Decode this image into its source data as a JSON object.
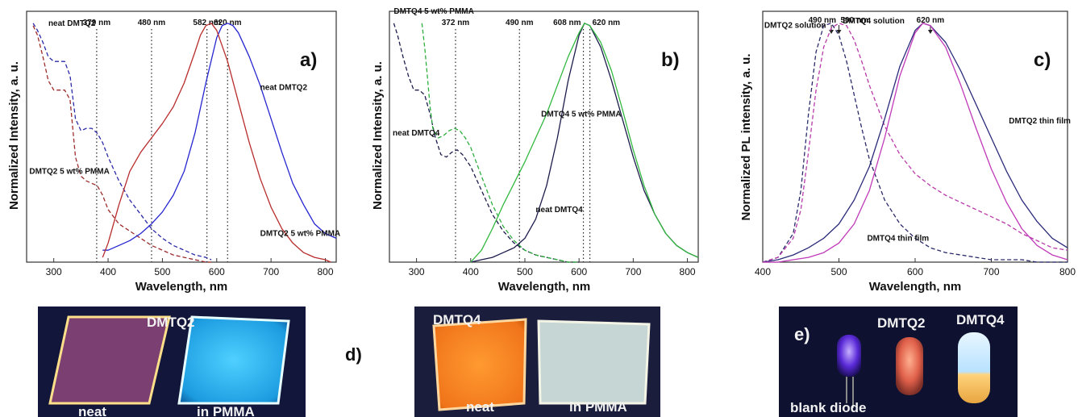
{
  "chart_data": [
    {
      "type": "line",
      "panel_label": "a)",
      "xlabel": "Wavelength, nm",
      "ylabel": "Normalized Intensity, a. u.",
      "xlim": [
        250,
        820
      ],
      "ylim": [
        0,
        1.05
      ],
      "xticks": [
        300,
        400,
        500,
        600,
        700,
        800
      ],
      "vlines": [
        {
          "x": 379,
          "label": "379 nm"
        },
        {
          "x": 480,
          "label": "480 nm"
        },
        {
          "x": 582,
          "label": "582 nm"
        },
        {
          "x": 620,
          "label": "620 nm"
        }
      ],
      "series": [
        {
          "name": "neat DMTQ2",
          "style": "dashed",
          "color": "#2a2aa8",
          "x": [
            262,
            270,
            280,
            290,
            300,
            310,
            320,
            330,
            340,
            350,
            360,
            370,
            380,
            390,
            400,
            420,
            440,
            460,
            480,
            500,
            520,
            540,
            560,
            580,
            590
          ],
          "y": [
            1.0,
            0.97,
            0.92,
            0.86,
            0.84,
            0.84,
            0.84,
            0.78,
            0.6,
            0.55,
            0.56,
            0.56,
            0.54,
            0.5,
            0.44,
            0.34,
            0.26,
            0.2,
            0.14,
            0.1,
            0.07,
            0.05,
            0.03,
            0.02,
            0.01
          ]
        },
        {
          "name": "DMTQ2 5 wt%  PMMA",
          "style": "dashed",
          "color": "#9c2b2b",
          "x": [
            262,
            270,
            280,
            290,
            300,
            310,
            320,
            330,
            340,
            350,
            360,
            370,
            380,
            390,
            400,
            420,
            440,
            460,
            480,
            500,
            520,
            540,
            560,
            580,
            590
          ],
          "y": [
            0.99,
            0.95,
            0.86,
            0.76,
            0.72,
            0.72,
            0.72,
            0.68,
            0.44,
            0.36,
            0.34,
            0.33,
            0.32,
            0.28,
            0.22,
            0.16,
            0.13,
            0.1,
            0.07,
            0.05,
            0.03,
            0.02,
            0.01,
            0.0,
            0.0
          ]
        },
        {
          "name": "neat DMTQ2",
          "style": "solid",
          "color": "#2626d0",
          "x": [
            390,
            400,
            420,
            440,
            460,
            480,
            500,
            520,
            540,
            560,
            580,
            600,
            610,
            620,
            630,
            640,
            660,
            680,
            700,
            720,
            740,
            760,
            780,
            800,
            820
          ],
          "y": [
            0.05,
            0.05,
            0.07,
            0.09,
            0.12,
            0.16,
            0.21,
            0.28,
            0.38,
            0.54,
            0.75,
            0.94,
            0.99,
            1.0,
            0.99,
            0.96,
            0.86,
            0.74,
            0.6,
            0.46,
            0.33,
            0.24,
            0.16,
            0.12,
            0.1
          ]
        },
        {
          "name": "DMTQ2 5 wt%  PMMA",
          "style": "solid",
          "color": "#b82c2c",
          "x": [
            390,
            400,
            420,
            440,
            460,
            480,
            500,
            520,
            540,
            560,
            570,
            580,
            590,
            600,
            620,
            640,
            660,
            680,
            700,
            720,
            740,
            760,
            780,
            800,
            810
          ],
          "y": [
            0.02,
            0.08,
            0.24,
            0.38,
            0.46,
            0.52,
            0.58,
            0.65,
            0.75,
            0.88,
            0.95,
            0.99,
            1.0,
            0.97,
            0.84,
            0.67,
            0.5,
            0.35,
            0.23,
            0.14,
            0.08,
            0.04,
            0.02,
            0.01,
            0.0
          ]
        }
      ],
      "annotations": [
        {
          "text": "neat DMTQ2",
          "x": 290,
          "y": 0.99
        },
        {
          "text": "neat DMTQ2",
          "x": 680,
          "y": 0.72
        },
        {
          "text": "DMTQ2 5 wt%  PMMA",
          "x": 255,
          "y": 0.37
        },
        {
          "text": "DMTQ2 5 wt%  PMMA",
          "x": 680,
          "y": 0.11
        }
      ]
    },
    {
      "type": "line",
      "panel_label": "b)",
      "xlabel": "Wavelength, nm",
      "ylabel": "Normalized Intensity, a. u.",
      "xlim": [
        250,
        820
      ],
      "ylim": [
        0,
        1.05
      ],
      "xticks": [
        300,
        400,
        500,
        600,
        700,
        800
      ],
      "vlines": [
        {
          "x": 372,
          "label": "372 nm"
        },
        {
          "x": 490,
          "label": "490 nm"
        },
        {
          "x": 608,
          "label": "608 nm"
        },
        {
          "x": 620,
          "label": "620 nm"
        }
      ],
      "series": [
        {
          "name": "neat DMTQ4",
          "style": "dashed",
          "color": "#1c1c4c",
          "x": [
            258,
            265,
            275,
            285,
            295,
            305,
            315,
            325,
            335,
            345,
            355,
            365,
            375,
            385,
            400,
            420,
            440,
            460,
            480,
            500,
            520,
            540,
            560,
            580,
            600
          ],
          "y": [
            1.0,
            0.95,
            0.86,
            0.78,
            0.72,
            0.72,
            0.7,
            0.62,
            0.52,
            0.45,
            0.44,
            0.46,
            0.47,
            0.45,
            0.4,
            0.3,
            0.2,
            0.13,
            0.08,
            0.05,
            0.03,
            0.02,
            0.01,
            0.0,
            0.0
          ]
        },
        {
          "name": "DMTQ4 5 wt%  PMMA",
          "style": "dashed",
          "color": "#2eae3e",
          "x": [
            310,
            315,
            320,
            325,
            330,
            340,
            350,
            360,
            370,
            380,
            390,
            400,
            420,
            440,
            460,
            480,
            500,
            520,
            540,
            560,
            580,
            600
          ],
          "y": [
            1.0,
            0.9,
            0.78,
            0.65,
            0.56,
            0.52,
            0.53,
            0.55,
            0.56,
            0.55,
            0.52,
            0.48,
            0.36,
            0.24,
            0.15,
            0.09,
            0.05,
            0.03,
            0.02,
            0.01,
            0.0,
            0.0
          ]
        },
        {
          "name": "neat DMTQ4",
          "style": "solid",
          "color": "#1c1c4c",
          "x": [
            400,
            420,
            440,
            460,
            480,
            500,
            520,
            540,
            560,
            580,
            600,
            610,
            620,
            640,
            660,
            680,
            700,
            720,
            740,
            760,
            780,
            800,
            820
          ],
          "y": [
            0.0,
            0.01,
            0.02,
            0.04,
            0.06,
            0.1,
            0.18,
            0.32,
            0.52,
            0.76,
            0.95,
            1.0,
            0.99,
            0.9,
            0.76,
            0.6,
            0.44,
            0.3,
            0.2,
            0.12,
            0.07,
            0.04,
            0.02
          ]
        },
        {
          "name": "DMTQ4 5 wt%  PMMA",
          "style": "solid",
          "color": "#32b840",
          "x": [
            400,
            420,
            440,
            460,
            480,
            500,
            520,
            540,
            560,
            580,
            600,
            610,
            620,
            640,
            660,
            680,
            700,
            720,
            740,
            760,
            780,
            800,
            820
          ],
          "y": [
            0.0,
            0.05,
            0.14,
            0.24,
            0.33,
            0.42,
            0.52,
            0.62,
            0.74,
            0.86,
            0.96,
            1.0,
            0.99,
            0.92,
            0.8,
            0.64,
            0.47,
            0.32,
            0.2,
            0.12,
            0.07,
            0.04,
            0.02
          ]
        }
      ],
      "annotations": [
        {
          "text": "DMTQ4 5 wt%  PMMA",
          "x": 258,
          "y": 1.04
        },
        {
          "text": "neat DMTQ4",
          "x": 256,
          "y": 0.53
        },
        {
          "text": "DMTQ4 5 wt%  PMMA",
          "x": 530,
          "y": 0.61
        },
        {
          "text": "neat DMTQ4",
          "x": 520,
          "y": 0.21
        }
      ]
    },
    {
      "type": "line",
      "panel_label": "c)",
      "xlabel": "Wavelength, nm",
      "ylabel": "Normalized PL intensity, a. u.",
      "xlim": [
        400,
        800
      ],
      "ylim": [
        0,
        1.05
      ],
      "xticks": [
        400,
        500,
        600,
        700,
        800
      ],
      "vlines": [],
      "arrows": [
        {
          "x": 490,
          "label": "490 nm"
        },
        {
          "x": 500,
          "label": "500 nm"
        },
        {
          "x": 620,
          "label": "620 nm"
        }
      ],
      "series": [
        {
          "name": "DMTQ2 solution",
          "style": "dashed",
          "color": "#2a2a6a",
          "x": [
            400,
            420,
            440,
            450,
            460,
            470,
            480,
            490,
            500,
            510,
            520,
            530,
            540,
            560,
            580,
            600,
            620,
            640,
            660,
            680,
            700,
            720,
            740,
            760,
            780,
            800
          ],
          "y": [
            0.0,
            0.02,
            0.12,
            0.3,
            0.62,
            0.88,
            0.99,
            1.0,
            0.95,
            0.84,
            0.7,
            0.56,
            0.43,
            0.26,
            0.16,
            0.1,
            0.06,
            0.04,
            0.03,
            0.02,
            0.01,
            0.01,
            0.01,
            0.0,
            0.0,
            0.0
          ]
        },
        {
          "name": "DMTQ4 solution",
          "style": "dashed",
          "color": "#b83aa8",
          "x": [
            400,
            420,
            440,
            450,
            460,
            470,
            480,
            490,
            500,
            510,
            520,
            530,
            540,
            560,
            580,
            600,
            620,
            640,
            660,
            680,
            700,
            720,
            740,
            760,
            780,
            800
          ],
          "y": [
            0.0,
            0.02,
            0.1,
            0.22,
            0.46,
            0.72,
            0.9,
            0.98,
            1.0,
            0.99,
            0.93,
            0.84,
            0.74,
            0.57,
            0.45,
            0.37,
            0.32,
            0.28,
            0.25,
            0.22,
            0.19,
            0.16,
            0.12,
            0.09,
            0.06,
            0.05
          ]
        },
        {
          "name": "DMTQ2 thin film",
          "style": "solid",
          "color": "#2a2a7a",
          "x": [
            400,
            420,
            440,
            460,
            480,
            500,
            520,
            540,
            560,
            580,
            600,
            610,
            620,
            640,
            660,
            680,
            700,
            720,
            740,
            760,
            780,
            800
          ],
          "y": [
            0.0,
            0.01,
            0.03,
            0.06,
            0.1,
            0.16,
            0.26,
            0.4,
            0.6,
            0.82,
            0.97,
            1.0,
            0.99,
            0.92,
            0.8,
            0.66,
            0.52,
            0.38,
            0.26,
            0.17,
            0.1,
            0.06
          ]
        },
        {
          "name": "DMTQ4 thin film",
          "style": "solid",
          "color": "#c03ab8",
          "x": [
            400,
            420,
            440,
            460,
            480,
            500,
            520,
            540,
            560,
            580,
            600,
            610,
            620,
            640,
            660,
            680,
            700,
            720,
            740,
            760,
            780,
            800
          ],
          "y": [
            0.0,
            0.0,
            0.01,
            0.02,
            0.04,
            0.08,
            0.16,
            0.3,
            0.52,
            0.78,
            0.96,
            1.0,
            0.99,
            0.9,
            0.74,
            0.56,
            0.39,
            0.25,
            0.14,
            0.07,
            0.03,
            0.01
          ]
        }
      ],
      "annotations": [
        {
          "text": "DMTQ2 solution",
          "x": 402,
          "y": 0.98
        },
        {
          "text": "DMTQ4 solution",
          "x": 505,
          "y": 1.0
        },
        {
          "text": "DMTQ2 thin film",
          "x": 723,
          "y": 0.58
        },
        {
          "text": "DMTQ4 thin film",
          "x": 537,
          "y": 0.09
        }
      ]
    }
  ],
  "photos": {
    "d_label": "d)",
    "e_label": "e)",
    "photo1": {
      "title": "DMTQ2",
      "left": "neat",
      "right": "in PMMA"
    },
    "photo2": {
      "title": "DMTQ4",
      "left": "neat",
      "right": "in PMMA"
    },
    "photo3": {
      "label1": "DMTQ2",
      "label2": "DMTQ4",
      "bottom": "blank diode"
    }
  }
}
